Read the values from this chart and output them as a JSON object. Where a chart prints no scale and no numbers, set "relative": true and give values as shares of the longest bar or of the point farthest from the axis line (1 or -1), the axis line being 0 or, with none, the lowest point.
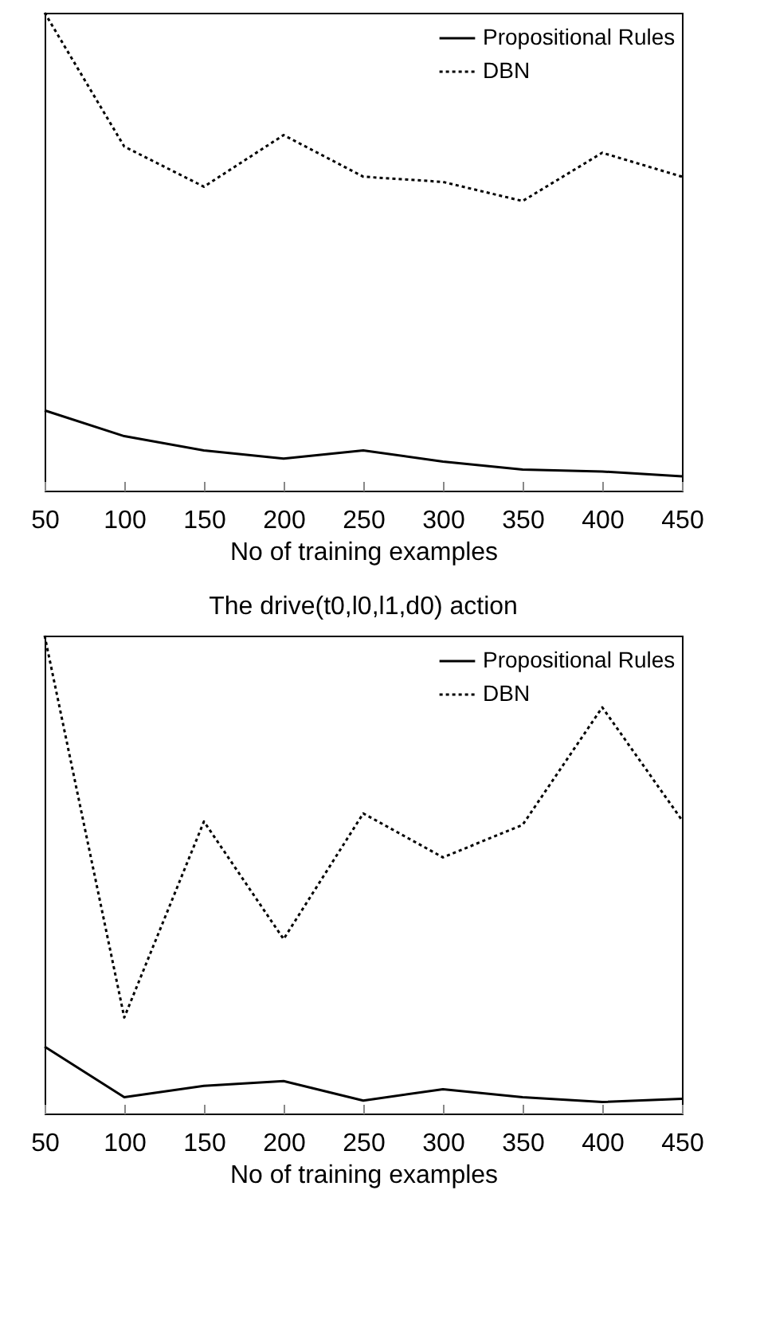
{
  "chart_data": [
    {
      "type": "line",
      "xlabel": "No of training examples",
      "x": [
        50,
        100,
        150,
        200,
        250,
        300,
        350,
        400,
        450
      ],
      "xlim": [
        50,
        450
      ],
      "xticks": [
        50,
        100,
        150,
        200,
        250,
        300,
        350,
        400,
        450
      ],
      "relative": true,
      "legend": "top right",
      "grid": false,
      "marker": "none",
      "series": [
        {
          "name": "Propositional Rules",
          "color": "#000000",
          "line_style": "solid",
          "values": [
            0.168,
            0.114,
            0.084,
            0.067,
            0.084,
            0.061,
            0.044,
            0.04,
            0.03
          ]
        },
        {
          "name": "DBN",
          "color": "#000000",
          "line_style": "dotted",
          "values": [
            1.0,
            0.72,
            0.636,
            0.744,
            0.657,
            0.646,
            0.606,
            0.707,
            0.657
          ]
        }
      ]
    },
    {
      "type": "line",
      "title": "The drive(t0,l0,l1,d0) action",
      "xlabel": "No of training examples",
      "x": [
        50,
        100,
        150,
        200,
        250,
        300,
        350,
        400,
        450
      ],
      "xlim": [
        50,
        450
      ],
      "xticks": [
        50,
        100,
        150,
        200,
        250,
        300,
        350,
        400,
        450
      ],
      "relative": true,
      "legend": "top right",
      "grid": false,
      "marker": "none",
      "series": [
        {
          "name": "Propositional Rules",
          "color": "#000000",
          "line_style": "solid",
          "values": [
            0.14,
            0.034,
            0.058,
            0.068,
            0.027,
            0.051,
            0.034,
            0.024,
            0.031
          ]
        },
        {
          "name": "DBN",
          "color": "#000000",
          "line_style": "dotted",
          "values": [
            1.0,
            0.201,
            0.611,
            0.365,
            0.628,
            0.536,
            0.604,
            0.85,
            0.614
          ]
        }
      ]
    }
  ]
}
